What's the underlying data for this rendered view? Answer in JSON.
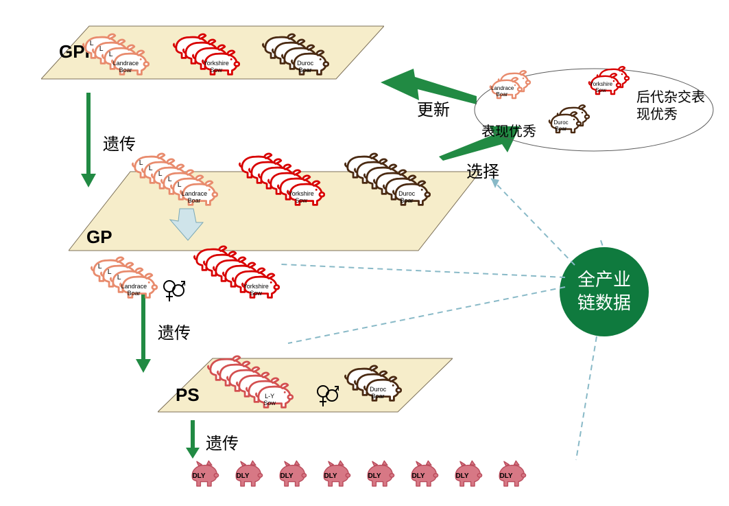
{
  "colors": {
    "landrace": "#e88b6d",
    "yorkshire": "#d80000",
    "duroc": "#4a2a12",
    "lysow": "#d35050",
    "dly_fill": "#d77885",
    "dly_stroke": "#b94b5b",
    "arrow_green": "#218a43",
    "arrow_light_blue": "#cfe4ea",
    "hub_green": "#0f7a3e",
    "plane_fill": "#f3e7b8",
    "plane_stroke": "#7c7058",
    "dash_blue": "#88b9c7"
  },
  "labels": {
    "tier_gpp": "GPP",
    "tier_gp": "GP",
    "tier_ps": "PS",
    "inherit": "遗传",
    "update": "更新",
    "select": "选择",
    "hub": "全产业\n链数据",
    "excellent_self": "表现优秀",
    "excellent_cross": "后代杂交表\n现优秀"
  },
  "pigLabels": {
    "landrace_boar": "Landrace\nBoar",
    "yorkshire_sow": "Yorkshire\nSow",
    "duroc_boar": "Duroc\nBoar",
    "ly_sow": "L-Y\nSow",
    "dly": "DLY"
  },
  "counts": {
    "gpp_landrace": 4,
    "gpp_yorkshire": 4,
    "gpp_duroc": 4,
    "gp_landrace": 6,
    "gp_yorkshire": 6,
    "gp_duroc": 6,
    "gp2_landrace": 4,
    "gp2_yorkshire": 6,
    "ps_ly": 6,
    "ps_duroc": 3,
    "dly": 8
  },
  "geom": {
    "pig_w": 58,
    "pig_h": 42,
    "cascade_dx": 14,
    "cascade_dy": -8,
    "dly_w": 46,
    "dly_h": 42,
    "dly_gap": 64
  }
}
